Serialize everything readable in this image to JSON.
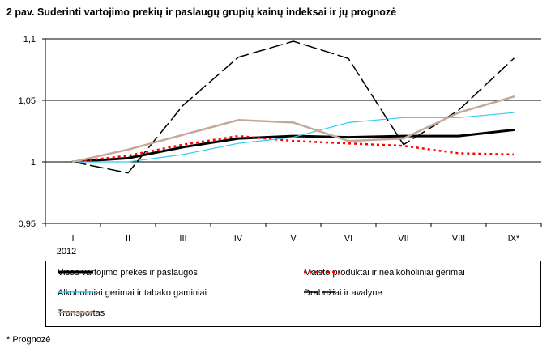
{
  "title": "2 pav. Suderinti vartojimo prekių ir paslaugų grupių kainų indeksai ir jų prognozė",
  "footnote": "* Prognozė",
  "chart_data": {
    "type": "line",
    "title": "2 pav. Suderinti vartojimo prekių ir paslaugų grupių kainų indeksai ir jų prognozė",
    "categories": [
      "I",
      "II",
      "III",
      "IV",
      "V",
      "VI",
      "VII",
      "VIII",
      "IX*"
    ],
    "year_label": "2012",
    "ylim": [
      0.95,
      1.1
    ],
    "yticks": [
      0.95,
      1,
      1.05,
      1.1
    ],
    "ytick_labels": [
      "0,95",
      "1",
      "1,05",
      "1,1"
    ],
    "grid": "horizontal",
    "legend_position": "bottom",
    "series": [
      {
        "name": "Visos vartojimo prekes ir paslaugos",
        "color": "#000000",
        "dash": "solid",
        "width": 3,
        "values": [
          1.0,
          1.003,
          1.012,
          1.019,
          1.021,
          1.02,
          1.021,
          1.021,
          1.026
        ]
      },
      {
        "name": "Maisto produktai ir nealkoholiniai gerimai",
        "color": "#ff0000",
        "dash": "dotted",
        "width": 2.5,
        "values": [
          1.0,
          1.005,
          1.014,
          1.021,
          1.017,
          1.015,
          1.013,
          1.007,
          1.006
        ]
      },
      {
        "name": "Alkoholiniai gerimai ir tabako gaminiai",
        "color": "#33ccee",
        "dash": "solid",
        "width": 1.2,
        "values": [
          1.0,
          1.0,
          1.006,
          1.015,
          1.02,
          1.032,
          1.036,
          1.036,
          1.04
        ]
      },
      {
        "name": "Drabužiai ir avalyne",
        "color": "#000000",
        "dash": "longdash",
        "width": 1.5,
        "values": [
          1.0,
          0.991,
          1.046,
          1.085,
          1.098,
          1.084,
          1.014,
          1.042,
          1.084
        ]
      },
      {
        "name": "Transportas",
        "color": "#c4a898",
        "dash": "solid",
        "width": 2.5,
        "values": [
          1.0,
          1.01,
          1.022,
          1.034,
          1.032,
          1.017,
          1.019,
          1.04,
          1.053
        ]
      }
    ]
  }
}
